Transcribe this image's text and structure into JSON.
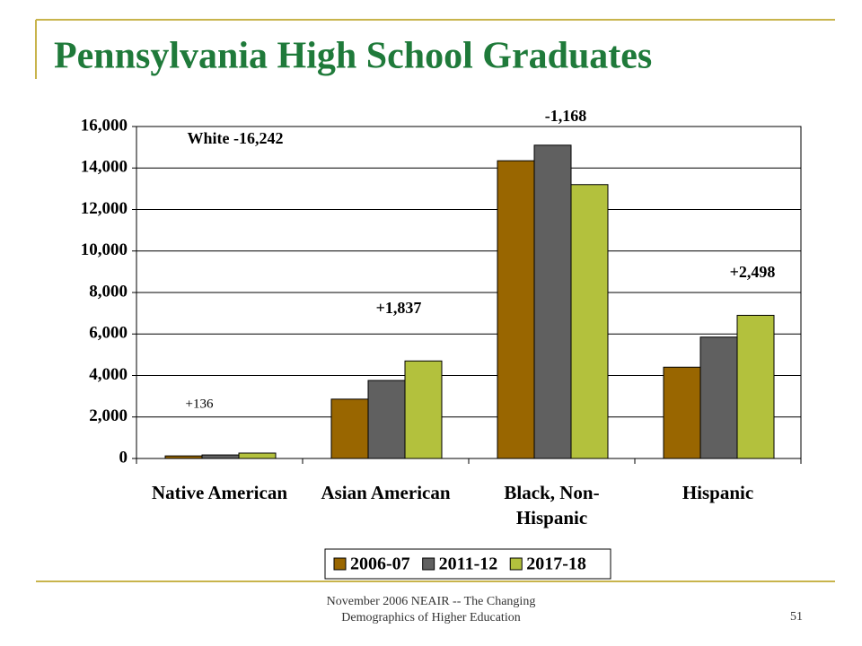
{
  "chart_data": {
    "type": "bar",
    "title": "Pennsylvania High School Graduates",
    "categories": [
      "Native American",
      "Asian American",
      "Black, Non-Hispanic",
      "Hispanic"
    ],
    "series": [
      {
        "name": "2006-07",
        "color": "#996600",
        "values": [
          124,
          2860,
          14350,
          4400
        ]
      },
      {
        "name": "2011-12",
        "color": "#606060",
        "values": [
          170,
          3760,
          15100,
          5850
        ]
      },
      {
        "name": "2017-18",
        "color": "#b3c13d",
        "values": [
          260,
          4700,
          13200,
          6900
        ]
      }
    ],
    "ylim": [
      0,
      16000
    ],
    "yticks": [
      0,
      {
        "value": 2000,
        "label": "2,000"
      },
      {
        "value": 4000,
        "label": "4,000"
      },
      {
        "value": 6000,
        "label": "6,000"
      },
      {
        "value": 8000,
        "label": "8,000"
      },
      {
        "value": 10000,
        "label": "10,000"
      },
      {
        "value": 12000,
        "label": "12,000"
      },
      {
        "value": 14000,
        "label": "14,000"
      },
      {
        "value": 16000,
        "label": "16,000"
      }
    ],
    "grid": true,
    "annotations": [
      "White -16,242",
      "+136",
      "+1,837",
      "-1,168",
      "+2,498"
    ],
    "footer": "November 2006 NEAIR -- The Changing Demographics of Higher Education",
    "page_number": "51"
  }
}
